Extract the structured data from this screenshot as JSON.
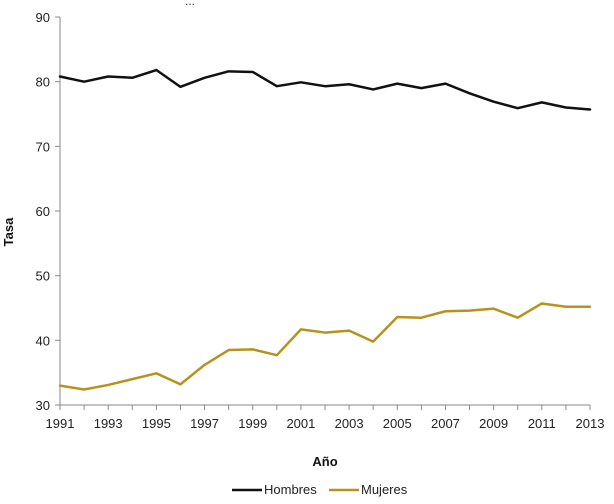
{
  "chart_data": {
    "type": "line",
    "title": "",
    "top_text_fragment": "...",
    "xlabel": "Año",
    "ylabel": "Tasa",
    "ylim": [
      30,
      90
    ],
    "yticks": [
      30,
      40,
      50,
      60,
      70,
      80,
      90
    ],
    "xlim": [
      1991,
      2013
    ],
    "x_tick_labels": [
      "1991",
      "1993",
      "1995",
      "1997",
      "1999",
      "2001",
      "2003",
      "2005",
      "2007",
      "2009",
      "2011",
      "2013"
    ],
    "x": [
      1991,
      1992,
      1993,
      1994,
      1995,
      1996,
      1997,
      1998,
      1999,
      2000,
      2001,
      2002,
      2003,
      2004,
      2005,
      2006,
      2007,
      2008,
      2009,
      2010,
      2011,
      2012,
      2013
    ],
    "grid": false,
    "legend_position": "bottom",
    "series": [
      {
        "name": "Hombres",
        "color": "#111111",
        "values": [
          80.8,
          80.0,
          80.8,
          80.6,
          81.8,
          79.2,
          80.6,
          81.6,
          81.5,
          79.3,
          79.9,
          79.3,
          79.6,
          78.8,
          79.7,
          79.0,
          79.7,
          78.2,
          76.9,
          75.9,
          76.8,
          76.0,
          75.7
        ]
      },
      {
        "name": "Mujeres",
        "color": "#b8921e",
        "values": [
          33.0,
          32.4,
          33.1,
          34.0,
          34.9,
          33.2,
          36.2,
          38.5,
          38.6,
          37.7,
          41.7,
          41.2,
          41.5,
          39.8,
          43.6,
          43.5,
          44.5,
          44.6,
          44.9,
          43.5,
          45.7,
          45.2,
          45.2
        ]
      }
    ]
  }
}
